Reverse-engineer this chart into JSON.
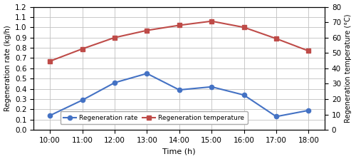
{
  "time_labels": [
    "10:00",
    "11:00",
    "12:00",
    "13:00",
    "14:00",
    "15:00",
    "16:00",
    "17:00",
    "18:00"
  ],
  "time_x": [
    10,
    11,
    12,
    13,
    14,
    15,
    16,
    17,
    18
  ],
  "regen_rate": [
    0.14,
    0.29,
    0.46,
    0.55,
    0.39,
    0.42,
    0.34,
    0.13,
    0.19
  ],
  "regen_temp_left_scale": [
    0.67,
    0.79,
    0.9,
    0.97,
    1.02,
    1.06,
    1.0,
    0.89,
    0.77
  ],
  "rate_color": "#4472C4",
  "temp_color": "#BE4B48",
  "rate_marker": "o",
  "temp_marker": "s",
  "xlabel": "Time (h)",
  "ylabel_left": "Regeneration rate (kg/h)",
  "ylabel_right": "Regeneration temperature (°C)",
  "legend_rate": "Regeneration rate",
  "legend_temp": "Regeneration temperature",
  "xlim": [
    9.5,
    18.5
  ],
  "ylim_left": [
    0,
    1.2
  ],
  "yticks_left": [
    0.0,
    0.1,
    0.2,
    0.3,
    0.4,
    0.5,
    0.6,
    0.7,
    0.8,
    0.9,
    1.0,
    1.1,
    1.2
  ],
  "yticks_right_labels": [
    "0",
    "10",
    "20",
    "30",
    "40",
    "50",
    "60",
    "70",
    "80"
  ],
  "yticks_right_pos": [
    0.0,
    0.15,
    0.3,
    0.45,
    0.6,
    0.75,
    0.9,
    1.05,
    1.2
  ],
  "grid_color": "#C0C0C0",
  "background_color": "#FFFFFF",
  "border_color": "#000000"
}
